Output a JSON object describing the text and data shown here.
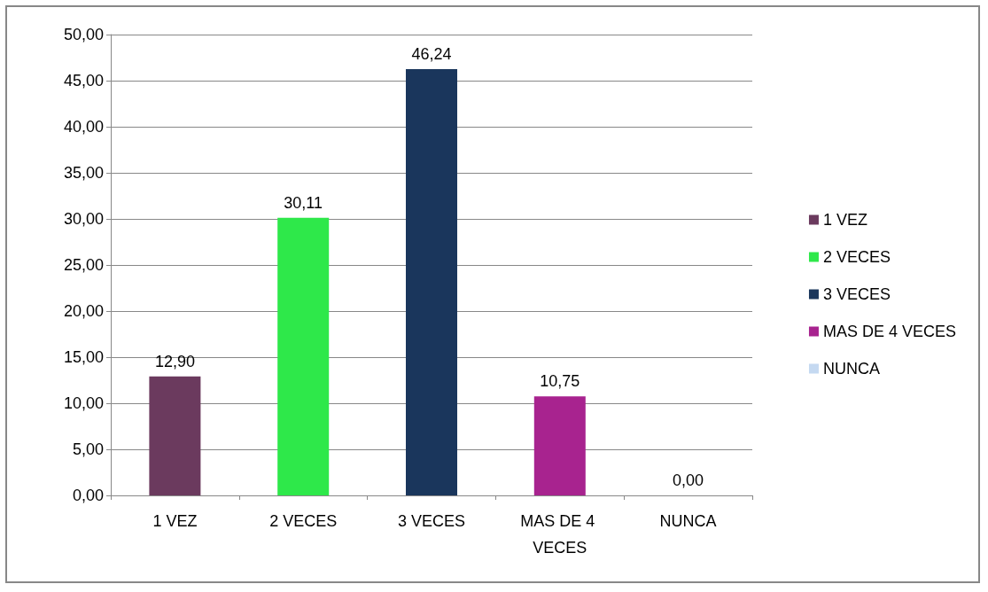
{
  "chart_data": {
    "type": "bar",
    "categories": [
      "1 VEZ",
      "2 VECES",
      "3 VECES",
      "MAS DE 4 VECES",
      "NUNCA"
    ],
    "series": [
      {
        "name": "1 VEZ",
        "color": "#6b3a5e",
        "values": [
          12.9,
          null,
          null,
          null,
          null
        ],
        "value_labels": [
          "12,90",
          null,
          null,
          null,
          null
        ]
      },
      {
        "name": "2 VECES",
        "color": "#2ee84a",
        "values": [
          null,
          30.11,
          null,
          null,
          null
        ],
        "value_labels": [
          null,
          "30,11",
          null,
          null,
          null
        ]
      },
      {
        "name": "3 VECES",
        "color": "#1a365c",
        "values": [
          null,
          null,
          46.24,
          null,
          null
        ],
        "value_labels": [
          null,
          null,
          "46,24",
          null,
          null
        ]
      },
      {
        "name": "MAS DE 4 VECES",
        "color": "#a8238f",
        "values": [
          null,
          null,
          null,
          10.75,
          null
        ],
        "value_labels": [
          null,
          null,
          null,
          "10,75",
          null
        ]
      },
      {
        "name": "NUNCA",
        "color": "#c5d9f1",
        "values": [
          null,
          null,
          null,
          null,
          0.0
        ],
        "value_labels": [
          null,
          null,
          null,
          null,
          "0,00"
        ]
      }
    ],
    "stacked": true,
    "ylim": [
      0,
      50
    ],
    "yticks": [
      {
        "value": 0,
        "label": "0,00"
      },
      {
        "value": 5,
        "label": "5,00"
      },
      {
        "value": 10,
        "label": "10,00"
      },
      {
        "value": 15,
        "label": "15,00"
      },
      {
        "value": 20,
        "label": "20,00"
      },
      {
        "value": 25,
        "label": "25,00"
      },
      {
        "value": 30,
        "label": "30,00"
      },
      {
        "value": 35,
        "label": "35,00"
      },
      {
        "value": 40,
        "label": "40,00"
      },
      {
        "value": 45,
        "label": "45,00"
      },
      {
        "value": 50,
        "label": "50,00"
      }
    ],
    "grid": "y",
    "legend": "right"
  }
}
